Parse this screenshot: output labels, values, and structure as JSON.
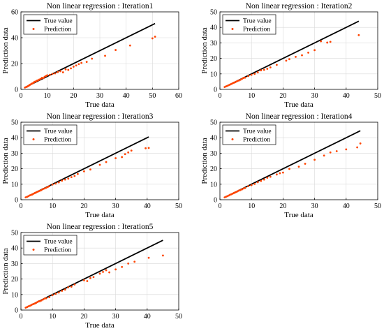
{
  "colors": {
    "true_line": "#000000",
    "prediction": "#ff4500",
    "axes": "#000000",
    "grid": "#d9d9d9"
  },
  "chart_data": [
    {
      "type": "scatter",
      "title": "Non linear regression : Iteration1",
      "xlabel": "True data",
      "ylabel": "Prediction data",
      "xlim": [
        0,
        60
      ],
      "ylim": [
        0,
        60
      ],
      "xticks": [
        0,
        10,
        20,
        30,
        40,
        50,
        60
      ],
      "yticks": [
        0,
        20,
        40,
        60
      ],
      "grid": true,
      "legend_position": "top-left",
      "series": [
        {
          "name": "True value",
          "kind": "line",
          "x": [
            1.5,
            51
          ],
          "y": [
            1.5,
            51
          ]
        },
        {
          "name": "Prediction",
          "kind": "points",
          "x": [
            1.5,
            2,
            2.3,
            2.7,
            3,
            3.3,
            3.6,
            4,
            4.3,
            4.7,
            5,
            5.4,
            5.8,
            6.2,
            6.6,
            7,
            7.5,
            8,
            8.5,
            9,
            9.5,
            10,
            11,
            12,
            13,
            14,
            15,
            16,
            17,
            18,
            19,
            20,
            21,
            22,
            23,
            25,
            27,
            32,
            36,
            41.5,
            50,
            51
          ],
          "y": [
            1.4,
            1.8,
            2.1,
            2.5,
            2.9,
            3.4,
            3.8,
            4.3,
            4.6,
            5,
            5.6,
            6,
            6.3,
            6.9,
            7.1,
            7.6,
            8.1,
            9,
            8.7,
            9.7,
            10.4,
            10.9,
            11.3,
            12,
            12.4,
            13.4,
            14.1,
            13.2,
            15.5,
            15.1,
            16.3,
            17.6,
            18.5,
            19.6,
            20.5,
            21.3,
            23.8,
            26,
            30.5,
            34,
            39.5,
            40.8
          ]
        }
      ]
    },
    {
      "type": "scatter",
      "title": "Non linear regression : Iteration2",
      "xlabel": "True data",
      "ylabel": "Prediction data",
      "xlim": [
        0,
        50
      ],
      "ylim": [
        0,
        50
      ],
      "xticks": [
        0,
        10,
        20,
        30,
        40,
        50
      ],
      "yticks": [
        0,
        10,
        20,
        30,
        40,
        50
      ],
      "grid": true,
      "legend_position": "top-left",
      "series": [
        {
          "name": "True value",
          "kind": "line",
          "x": [
            1.5,
            44
          ],
          "y": [
            1.5,
            44
          ]
        },
        {
          "name": "Prediction",
          "kind": "points",
          "x": [
            1.5,
            2,
            2.4,
            2.8,
            3.2,
            3.6,
            4,
            4.4,
            4.8,
            5.2,
            5.6,
            6,
            6.5,
            7,
            7.5,
            8,
            9,
            10,
            11,
            12,
            13,
            14,
            15,
            16,
            18,
            21,
            22,
            24,
            26,
            28,
            30,
            32,
            34,
            35,
            44
          ],
          "y": [
            1.5,
            2,
            2.3,
            2.7,
            3.1,
            3.5,
            3.9,
            4.3,
            4.6,
            5,
            5.5,
            5.7,
            6.2,
            6.8,
            7.4,
            7.6,
            8.6,
            9.4,
            10,
            11,
            12.3,
            12.6,
            13.3,
            14.2,
            15.8,
            18.5,
            19.5,
            21,
            22,
            23.7,
            25.3,
            31,
            30.2,
            30.7,
            35
          ]
        }
      ]
    },
    {
      "type": "scatter",
      "title": "Non linear regression : Iteration3",
      "xlabel": "True data",
      "ylabel": "Prediction data",
      "xlim": [
        0,
        50
      ],
      "ylim": [
        0,
        50
      ],
      "xticks": [
        0,
        10,
        20,
        30,
        40,
        50
      ],
      "yticks": [
        0,
        10,
        20,
        30,
        40,
        50
      ],
      "grid": true,
      "legend_position": "top-left",
      "series": [
        {
          "name": "True value",
          "kind": "line",
          "x": [
            1.5,
            40.5
          ],
          "y": [
            1.5,
            40.5
          ]
        },
        {
          "name": "Prediction",
          "kind": "points",
          "x": [
            1.5,
            2,
            2.4,
            2.8,
            3.2,
            3.6,
            4,
            4.4,
            4.8,
            5.2,
            5.6,
            6,
            6.5,
            7,
            7.5,
            8,
            8.5,
            9,
            10,
            11,
            12,
            13,
            14,
            15,
            16,
            17,
            18,
            20,
            22,
            25,
            27,
            30,
            32,
            33,
            34,
            35,
            39.5,
            40.5
          ],
          "y": [
            1.5,
            1.9,
            2.3,
            2.8,
            3.1,
            3.4,
            3.9,
            4.3,
            4.7,
            5.1,
            5.4,
            5.8,
            6.2,
            6.9,
            7.2,
            7.7,
            8.2,
            8.7,
            9.8,
            10.4,
            11.2,
            12.3,
            13,
            13.6,
            14.6,
            15.3,
            16.6,
            18.3,
            19.5,
            22.5,
            24.3,
            26.8,
            27.5,
            29.4,
            30.5,
            31.7,
            33.2,
            33.4
          ]
        }
      ]
    },
    {
      "type": "scatter",
      "title": "Non linear regression : Iteration4",
      "xlabel": "True data",
      "ylabel": "Prediction data",
      "xlim": [
        0,
        50
      ],
      "ylim": [
        0,
        50
      ],
      "xticks": [
        0,
        10,
        20,
        30,
        40,
        50
      ],
      "yticks": [
        0,
        10,
        20,
        30,
        40,
        50
      ],
      "grid": true,
      "legend_position": "top-left",
      "series": [
        {
          "name": "True value",
          "kind": "line",
          "x": [
            1.5,
            44.5
          ],
          "y": [
            1.5,
            44.5
          ]
        },
        {
          "name": "Prediction",
          "kind": "points",
          "x": [
            1.5,
            2,
            2.4,
            2.8,
            3.2,
            3.6,
            4,
            4.4,
            4.8,
            5.2,
            5.6,
            6,
            6.5,
            7,
            7.5,
            8,
            9,
            10,
            11,
            12,
            13,
            14,
            15,
            16,
            18,
            19,
            20,
            22,
            25,
            27,
            30,
            33,
            35,
            37,
            40,
            43.5,
            44.5
          ],
          "y": [
            1.5,
            2,
            2.3,
            2.7,
            3.2,
            3.5,
            3.9,
            4.3,
            4.7,
            5,
            5.4,
            5.9,
            6.2,
            6.7,
            7.2,
            7.6,
            8.8,
            9.4,
            10.2,
            11.3,
            12.1,
            13,
            14.2,
            14.8,
            16.3,
            17.1,
            17.5,
            19.9,
            21.3,
            23.2,
            25.8,
            28.5,
            30.5,
            31.3,
            32.5,
            33.8,
            36.3
          ]
        }
      ]
    },
    {
      "type": "scatter",
      "title": "Non linear regression : Iteration5",
      "xlabel": "True data",
      "ylabel": "Prediction data",
      "xlim": [
        0,
        50
      ],
      "ylim": [
        0,
        50
      ],
      "xticks": [
        0,
        10,
        20,
        30,
        40,
        50
      ],
      "yticks": [
        0,
        10,
        20,
        30,
        40,
        50
      ],
      "grid": true,
      "legend_position": "top-left",
      "series": [
        {
          "name": "True value",
          "kind": "line",
          "x": [
            1.5,
            45
          ],
          "y": [
            1.5,
            45
          ]
        },
        {
          "name": "Prediction",
          "kind": "points",
          "x": [
            1.5,
            2,
            2.4,
            2.8,
            3.2,
            3.6,
            4,
            4.4,
            4.8,
            5.2,
            5.6,
            6,
            6.5,
            7,
            7.5,
            8,
            9,
            10,
            11,
            12,
            13,
            14,
            15,
            16,
            17,
            20,
            21,
            22,
            23,
            25,
            26,
            27,
            28,
            30,
            32,
            34,
            36,
            40.5,
            45
          ],
          "y": [
            1.5,
            2,
            2.4,
            2.7,
            3.1,
            3.6,
            3.9,
            4.2,
            4.7,
            5.1,
            5.6,
            5.7,
            6.2,
            6.8,
            7.4,
            7.6,
            8.3,
            9.6,
            10.5,
            11.3,
            12.4,
            13.2,
            14.7,
            15.1,
            16.5,
            19.2,
            18.7,
            20.6,
            21.3,
            23.5,
            24.6,
            25.7,
            24.3,
            26.2,
            27.8,
            30,
            31.2,
            33.7,
            35.2
          ]
        }
      ]
    }
  ]
}
